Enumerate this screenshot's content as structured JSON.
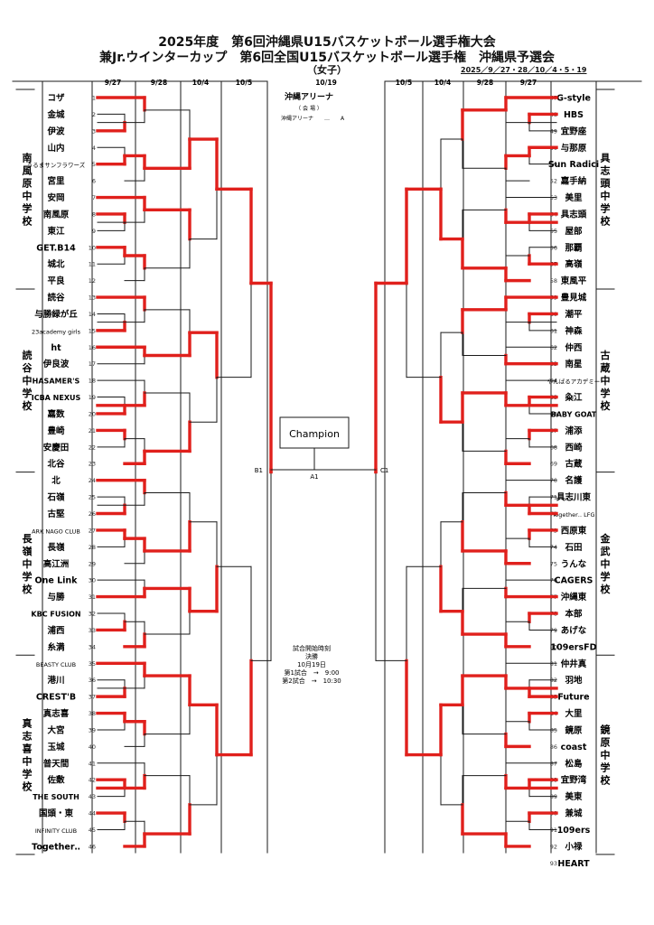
{
  "title": {
    "line1": "2025年度　第6回沖縄県U15バスケットボール選手権大会",
    "line2": "兼Jr.ウインターカップ　第6回全国U15バスケットボール選手権　沖縄県予選会",
    "line3": "（女子）",
    "dates": "2025／9／27・28／10／4・5・19"
  },
  "round_headers_left": [
    "9/27",
    "9/28",
    "10/4",
    "10/5"
  ],
  "round_headers_right": [
    "10/5",
    "10/4",
    "9/28",
    "9/27"
  ],
  "final_header": "10/19",
  "venue": {
    "name": "沖縄アリーナ",
    "label": "（ 会 場 ）",
    "line": "沖縄アリーナ　　…　　A"
  },
  "champion_label": "Champion",
  "final_labels": {
    "left": "B1",
    "center": "A1",
    "right": "C1"
  },
  "schedule": {
    "title": "試合開始時刻",
    "final": "決勝",
    "date": "10月19日",
    "game1": "第1試合　→　9:00",
    "game2": "第2試合　→　10:30"
  },
  "zones": [
    {
      "name": "南風原中学校",
      "side": "left"
    },
    {
      "name": "読谷中学校",
      "side": "left"
    },
    {
      "name": "長嶺中学校",
      "side": "left"
    },
    {
      "name": "真志喜中学校",
      "side": "left"
    },
    {
      "name": "具志頭中学校",
      "side": "right"
    },
    {
      "name": "古蔵中学校",
      "side": "right"
    },
    {
      "name": "金武中学校",
      "side": "right"
    },
    {
      "name": "鏡原中学校",
      "side": "right"
    }
  ],
  "left_teams": [
    {
      "n": 1,
      "name": "コザ"
    },
    {
      "n": 2,
      "name": "金城"
    },
    {
      "n": 3,
      "name": "伊波"
    },
    {
      "n": 4,
      "name": "山内"
    },
    {
      "n": 5,
      "name": "うるまサンフラワーズ",
      "size": "small"
    },
    {
      "n": 6,
      "name": "宮里"
    },
    {
      "n": 7,
      "name": "安岡"
    },
    {
      "n": 8,
      "name": "南風原"
    },
    {
      "n": 9,
      "name": "東江"
    },
    {
      "n": 10,
      "name": "GET.B14"
    },
    {
      "n": 11,
      "name": "城北"
    },
    {
      "n": 12,
      "name": "平良"
    },
    {
      "n": 13,
      "name": "読谷"
    },
    {
      "n": 14,
      "name": "与勝緑が丘"
    },
    {
      "n": 15,
      "name": "23academy girls",
      "size": "small"
    },
    {
      "n": 16,
      "name": "ht"
    },
    {
      "n": 17,
      "name": "伊良波"
    },
    {
      "n": 18,
      "name": "HASAMER'S",
      "size": "mid"
    },
    {
      "n": 19,
      "name": "ICBA NEXUS",
      "size": "mid"
    },
    {
      "n": 20,
      "name": "嘉数"
    },
    {
      "n": 21,
      "name": "豊崎"
    },
    {
      "n": 22,
      "name": "安慶田"
    },
    {
      "n": 23,
      "name": "北谷"
    },
    {
      "n": 24,
      "name": "北"
    },
    {
      "n": 25,
      "name": "石嶺"
    },
    {
      "n": 26,
      "name": "古堅"
    },
    {
      "n": 27,
      "name": "ARK NAGO CLUB",
      "size": "small"
    },
    {
      "n": 28,
      "name": "長嶺"
    },
    {
      "n": 29,
      "name": "高江洲"
    },
    {
      "n": 30,
      "name": "One Link"
    },
    {
      "n": 31,
      "name": "与勝"
    },
    {
      "n": 32,
      "name": "KBC FUSION",
      "size": "mid"
    },
    {
      "n": 33,
      "name": "浦西"
    },
    {
      "n": 34,
      "name": "糸満"
    },
    {
      "n": 35,
      "name": "BEASTY CLUB",
      "size": "small"
    },
    {
      "n": 36,
      "name": "港川"
    },
    {
      "n": 37,
      "name": "CREST'B"
    },
    {
      "n": 38,
      "name": "真志喜"
    },
    {
      "n": 39,
      "name": "大宮"
    },
    {
      "n": 40,
      "name": "玉城"
    },
    {
      "n": 41,
      "name": "普天間"
    },
    {
      "n": 42,
      "name": "佐敷"
    },
    {
      "n": 43,
      "name": "THE SOUTH",
      "size": "mid"
    },
    {
      "n": 44,
      "name": "国頭・東"
    },
    {
      "n": 45,
      "name": "INFINITY CLUB",
      "size": "small"
    },
    {
      "n": 46,
      "name": "Together‥"
    }
  ],
  "right_teams": [
    {
      "n": 47,
      "name": "G-style"
    },
    {
      "n": 48,
      "name": "HBS"
    },
    {
      "n": 49,
      "name": "宜野座"
    },
    {
      "n": 50,
      "name": "与那原"
    },
    {
      "n": 51,
      "name": "Sun Radici"
    },
    {
      "n": 52,
      "name": "嘉手納"
    },
    {
      "n": 53,
      "name": "美里"
    },
    {
      "n": 54,
      "name": "具志頭"
    },
    {
      "n": 55,
      "name": "屋部"
    },
    {
      "n": 56,
      "name": "那覇"
    },
    {
      "n": 57,
      "name": "高嶺"
    },
    {
      "n": 58,
      "name": "東風平"
    },
    {
      "n": 59,
      "name": "豊見城"
    },
    {
      "n": 60,
      "name": "潮平"
    },
    {
      "n": 61,
      "name": "神森"
    },
    {
      "n": 62,
      "name": "仲西"
    },
    {
      "n": 63,
      "name": "南星"
    },
    {
      "n": 64,
      "name": "やんばるアカデミー",
      "size": "small"
    },
    {
      "n": 65,
      "name": "粂江"
    },
    {
      "n": 66,
      "name": "BABY GOAT",
      "size": "mid"
    },
    {
      "n": 67,
      "name": "浦添"
    },
    {
      "n": 68,
      "name": "西崎"
    },
    {
      "n": 69,
      "name": "古蔵"
    },
    {
      "n": 70,
      "name": "名護"
    },
    {
      "n": 71,
      "name": "具志川東"
    },
    {
      "n": 72,
      "name": "Together‥ LFG",
      "size": "small"
    },
    {
      "n": 73,
      "name": "西原東"
    },
    {
      "n": 74,
      "name": "石田"
    },
    {
      "n": 75,
      "name": "うんな"
    },
    {
      "n": 76,
      "name": "CAGERS"
    },
    {
      "n": 77,
      "name": "沖縄東"
    },
    {
      "n": 78,
      "name": "本部"
    },
    {
      "n": 79,
      "name": "あげな"
    },
    {
      "n": 80,
      "name": "109ersFD"
    },
    {
      "n": 81,
      "name": "仲井真"
    },
    {
      "n": 82,
      "name": "羽地"
    },
    {
      "n": 83,
      "name": "Future"
    },
    {
      "n": 84,
      "name": "大里"
    },
    {
      "n": 85,
      "name": "鏡原"
    },
    {
      "n": 86,
      "name": "coast"
    },
    {
      "n": 87,
      "name": "松島"
    },
    {
      "n": 88,
      "name": "宜野湾"
    },
    {
      "n": 89,
      "name": "美東"
    },
    {
      "n": 90,
      "name": "兼城"
    },
    {
      "n": 91,
      "name": "109ers"
    },
    {
      "n": 92,
      "name": "小禄"
    },
    {
      "n": 93,
      "name": "HEART"
    }
  ]
}
